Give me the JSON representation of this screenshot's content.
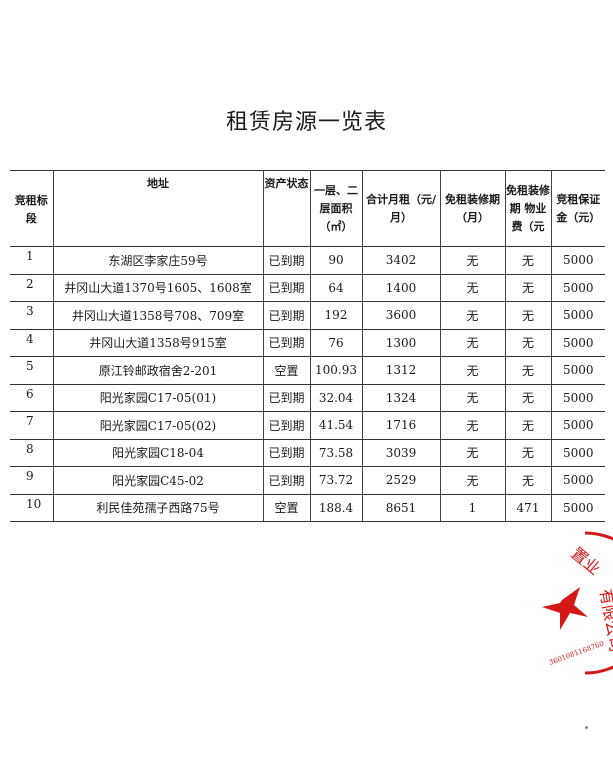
{
  "title": "租赁房源一览表",
  "table": {
    "headers": [
      "竞租标段",
      "地址",
      "资产状态",
      "一层、二层面积（㎡）",
      "合计月租（元/月）",
      "免租装修期（月）",
      "免租装修期 物业费（元",
      "竞租保证金（元）"
    ],
    "rows": [
      [
        "1",
        "东湖区李家庄59号",
        "已到期",
        "90",
        "3402",
        "无",
        "无",
        "5000"
      ],
      [
        "2",
        "井冈山大道1370号1605、1608室",
        "已到期",
        "64",
        "1400",
        "无",
        "无",
        "5000"
      ],
      [
        "3",
        "井冈山大道1358号708、709室",
        "已到期",
        "192",
        "3600",
        "无",
        "无",
        "5000"
      ],
      [
        "4",
        "井冈山大道1358号915室",
        "已到期",
        "76",
        "1300",
        "无",
        "无",
        "5000"
      ],
      [
        "5",
        "原江铃邮政宿舍2-201",
        "空置",
        "100.93",
        "1312",
        "无",
        "无",
        "5000"
      ],
      [
        "6",
        "阳光家园C17-05(01)",
        "已到期",
        "32.04",
        "1324",
        "无",
        "无",
        "5000"
      ],
      [
        "7",
        "阳光家园C17-05(02)",
        "已到期",
        "41.54",
        "1716",
        "无",
        "无",
        "5000"
      ],
      [
        "8",
        "阳光家园C18-04",
        "已到期",
        "73.58",
        "3039",
        "无",
        "无",
        "5000"
      ],
      [
        "9",
        "阳光家园C45-02",
        "已到期",
        "73.72",
        "2529",
        "无",
        "无",
        "5000"
      ],
      [
        "10",
        "利民佳苑孺子西路75号",
        "空置",
        "188.4",
        "8651",
        "1",
        "471",
        "5000"
      ]
    ]
  },
  "stamp": {
    "text": "置业有限公司",
    "number": "3601081168760",
    "color": "#d41818"
  }
}
